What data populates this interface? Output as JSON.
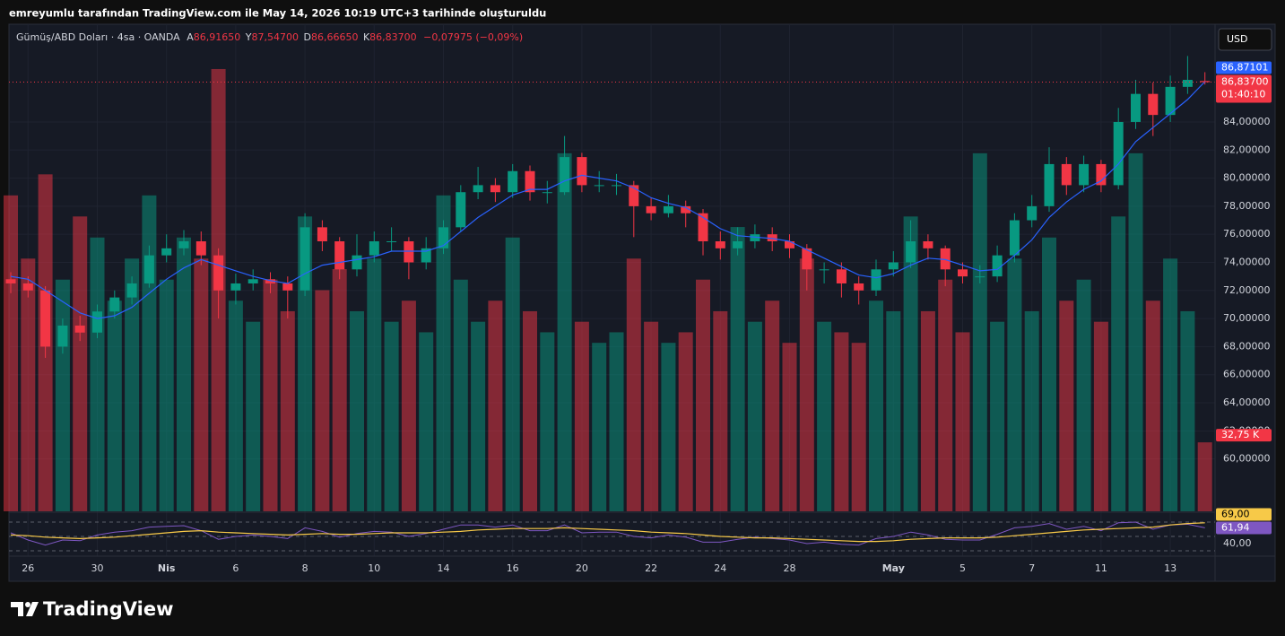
{
  "page": {
    "header": "emreyumlu tarafından TradingView.com ile May 14, 2026 10:19 UTC+3 tarihinde oluşturuldu",
    "brand": "TradingView",
    "currency_button": "USD"
  },
  "chart_data": {
    "type": "candlestick",
    "legend": {
      "symbol": "Gümüş/ABD Doları · 4sa · OANDA",
      "ohlc": [
        {
          "key": "A",
          "value": "86,91650"
        },
        {
          "key": "Y",
          "value": "87,54700"
        },
        {
          "key": "D",
          "value": "86,66650"
        },
        {
          "key": "K",
          "value": "86,83700"
        }
      ],
      "change": "−0,07975 (−0,09%)"
    },
    "up_color": "#089981",
    "down_color": "#f23645",
    "categories": [
      null,
      "26",
      null,
      null,
      null,
      "30",
      null,
      null,
      null,
      "Nis",
      null,
      null,
      null,
      "6",
      null,
      null,
      null,
      "8",
      null,
      null,
      null,
      "10",
      null,
      null,
      null,
      "14",
      null,
      null,
      null,
      "16",
      null,
      null,
      null,
      "20",
      null,
      null,
      null,
      "22",
      null,
      null,
      null,
      "24",
      null,
      null,
      null,
      "28",
      null,
      null,
      null,
      null,
      null,
      "May",
      null,
      null,
      null,
      "5",
      null,
      null,
      null,
      "7",
      null,
      null,
      null,
      "11",
      null,
      null,
      null,
      "13",
      null,
      null
    ],
    "open": [
      72.8,
      72.5,
      72.0,
      68.0,
      69.5,
      69.0,
      70.5,
      71.5,
      72.5,
      74.5,
      75.0,
      75.5,
      74.5,
      72.0,
      72.5,
      72.8,
      72.5,
      72.0,
      76.5,
      75.5,
      73.5,
      74.5,
      75.5,
      75.5,
      74.0,
      75.0,
      76.5,
      79.0,
      79.5,
      79.0,
      80.5,
      79.0,
      79.0,
      81.5,
      79.5,
      79.5,
      79.5,
      78.0,
      77.5,
      78.0,
      77.5,
      75.5,
      75.0,
      75.5,
      76.0,
      75.5,
      75.0,
      73.5,
      73.5,
      72.5,
      72.0,
      73.5,
      74.0,
      75.5,
      75.0,
      73.5,
      73.0,
      73.0,
      74.5,
      77.0,
      78.0,
      81.0,
      79.5,
      81.0,
      79.5,
      84.0,
      86.0,
      84.5,
      86.5,
      86.9165
    ],
    "high": [
      73.3,
      73.0,
      72.3,
      70.0,
      70.2,
      71.0,
      72.0,
      73.0,
      75.2,
      76.0,
      76.3,
      76.2,
      75.0,
      73.2,
      73.5,
      73.3,
      73.0,
      77.5,
      77.0,
      75.8,
      76.0,
      76.2,
      76.5,
      75.8,
      75.8,
      77.0,
      79.5,
      80.8,
      80.0,
      81.0,
      80.9,
      79.8,
      83.0,
      81.8,
      80.5,
      80.3,
      79.8,
      78.6,
      78.8,
      78.4,
      77.8,
      76.2,
      76.5,
      76.7,
      76.5,
      76.0,
      75.3,
      74.0,
      74.0,
      73.0,
      74.2,
      74.8,
      77.0,
      76.0,
      75.2,
      74.0,
      73.8,
      75.2,
      77.5,
      78.8,
      82.2,
      81.5,
      81.6,
      81.3,
      85.0,
      87.0,
      86.8,
      87.3,
      88.7,
      87.547
    ],
    "low": [
      71.8,
      71.5,
      67.2,
      67.5,
      68.4,
      68.6,
      70.0,
      71.0,
      72.2,
      74.0,
      74.5,
      73.8,
      70.0,
      71.0,
      72.0,
      71.8,
      70.0,
      71.6,
      74.8,
      72.8,
      73.0,
      74.0,
      74.8,
      72.8,
      73.5,
      74.6,
      76.2,
      78.5,
      78.3,
      78.6,
      78.4,
      78.2,
      78.8,
      79.0,
      79.0,
      78.8,
      75.8,
      77.0,
      77.2,
      76.5,
      74.5,
      74.2,
      74.5,
      75.0,
      74.8,
      74.3,
      72.0,
      72.5,
      71.5,
      71.0,
      71.6,
      73.0,
      73.6,
      74.2,
      72.3,
      72.5,
      72.5,
      72.6,
      74.0,
      76.5,
      77.6,
      78.8,
      79.0,
      79.0,
      79.2,
      83.5,
      83.0,
      84.0,
      86.0,
      86.6665
    ],
    "close": [
      72.5,
      72.0,
      68.0,
      69.5,
      69.0,
      70.5,
      71.5,
      72.5,
      74.5,
      75.0,
      75.5,
      74.5,
      72.0,
      72.5,
      72.8,
      72.5,
      72.0,
      76.5,
      75.5,
      73.5,
      74.5,
      75.5,
      75.5,
      74.0,
      75.0,
      76.5,
      79.0,
      79.5,
      79.0,
      80.5,
      79.0,
      79.0,
      81.5,
      79.5,
      79.5,
      79.5,
      78.0,
      77.5,
      78.0,
      77.5,
      75.5,
      75.0,
      75.5,
      76.0,
      75.5,
      75.0,
      73.5,
      73.5,
      72.5,
      72.0,
      73.5,
      74.0,
      75.5,
      75.0,
      73.5,
      73.0,
      73.0,
      74.5,
      77.0,
      78.0,
      81.0,
      79.5,
      81.0,
      79.5,
      84.0,
      86.0,
      84.5,
      86.5,
      87.0,
      86.837
    ],
    "close_label": "86,83700",
    "countdown": "01:40:10",
    "ylim": [
      56.27,
      90.77
    ],
    "yticks": [
      {
        "value": 84,
        "label": "84,00000"
      },
      {
        "value": 82,
        "label": "82,00000"
      },
      {
        "value": 80,
        "label": "80,00000"
      },
      {
        "value": 78,
        "label": "78,00000"
      },
      {
        "value": 76,
        "label": "76,00000"
      },
      {
        "value": 74,
        "label": "74,00000"
      },
      {
        "value": 72,
        "label": "72,00000"
      },
      {
        "value": 70,
        "label": "70,00000"
      },
      {
        "value": 68,
        "label": "68,00000"
      },
      {
        "value": 66,
        "label": "66,00000"
      },
      {
        "value": 64,
        "label": "64,00000"
      },
      {
        "value": 62,
        "label": "62,00000"
      },
      {
        "value": 60,
        "label": "60,00000"
      }
    ],
    "grid": true,
    "ma": {
      "color": "#2962ff",
      "values": [
        73.0,
        72.8,
        72.0,
        71.2,
        70.4,
        70.0,
        70.2,
        70.8,
        71.8,
        72.8,
        73.6,
        74.2,
        73.8,
        73.4,
        73.0,
        72.7,
        72.5,
        73.2,
        73.8,
        74.0,
        74.2,
        74.4,
        74.8,
        74.8,
        74.8,
        75.2,
        76.2,
        77.2,
        78.0,
        78.8,
        79.2,
        79.2,
        79.8,
        80.2,
        80.0,
        79.8,
        79.3,
        78.6,
        78.2,
        77.9,
        77.2,
        76.4,
        75.9,
        75.8,
        75.7,
        75.5,
        74.9,
        74.3,
        73.7,
        73.1,
        72.9,
        73.2,
        73.8,
        74.3,
        74.2,
        73.8,
        73.4,
        73.5,
        74.5,
        75.6,
        77.2,
        78.3,
        79.2,
        79.8,
        81.0,
        82.6,
        83.6,
        84.6,
        85.6,
        86.87101
      ],
      "last_label": "86,87101"
    },
    "volume": {
      "ylim": [
        0,
        230000
      ],
      "values": [
        150000,
        120000,
        160000,
        110000,
        140000,
        130000,
        100000,
        120000,
        150000,
        110000,
        130000,
        120000,
        210000,
        100000,
        90000,
        110000,
        95000,
        140000,
        105000,
        115000,
        95000,
        120000,
        90000,
        100000,
        85000,
        150000,
        110000,
        90000,
        100000,
        130000,
        95000,
        85000,
        170000,
        90000,
        80000,
        85000,
        120000,
        90000,
        80000,
        85000,
        110000,
        95000,
        135000,
        90000,
        100000,
        80000,
        120000,
        90000,
        85000,
        80000,
        100000,
        95000,
        140000,
        95000,
        110000,
        85000,
        170000,
        90000,
        120000,
        95000,
        130000,
        100000,
        110000,
        90000,
        140000,
        170000,
        100000,
        120000,
        95000,
        32750
      ],
      "last_label": "32,75 K"
    },
    "rsi": {
      "color": "#7e57c2",
      "ma_color": "#f7c948",
      "ylim": [
        25,
        82.5
      ],
      "bands": [
        30,
        50,
        70
      ],
      "yticks": [
        {
          "value": 40,
          "label": "40,00"
        }
      ],
      "values": [
        55,
        45,
        38,
        45,
        44,
        52,
        56,
        58,
        63,
        64,
        65,
        58,
        46,
        50,
        52,
        50,
        47,
        62,
        57,
        49,
        54,
        57,
        56,
        50,
        54,
        60,
        66,
        66,
        63,
        66,
        58,
        58,
        66,
        55,
        56,
        56,
        50,
        48,
        52,
        49,
        42,
        42,
        46,
        49,
        47,
        45,
        40,
        42,
        39,
        38,
        47,
        50,
        56,
        52,
        46,
        45,
        45,
        53,
        62,
        64,
        68,
        60,
        64,
        58,
        69,
        70,
        60,
        66,
        67,
        61.94
      ],
      "ma_values": [
        52,
        51,
        49,
        48,
        47,
        48,
        49,
        51,
        53,
        55,
        57,
        58,
        56,
        55,
        54,
        53,
        52,
        53,
        54,
        53,
        53,
        54,
        55,
        55,
        55,
        56,
        57,
        59,
        60,
        61,
        61,
        61,
        62,
        61,
        60,
        59,
        58,
        56,
        55,
        54,
        52,
        50,
        49,
        48,
        48,
        47,
        46,
        45,
        44,
        43,
        43,
        44,
        46,
        47,
        48,
        48,
        48,
        49,
        51,
        53,
        55,
        57,
        59,
        60,
        61,
        62,
        63,
        66,
        68,
        69
      ],
      "last_label": "61,94",
      "ma_last_label": "69,00"
    }
  }
}
